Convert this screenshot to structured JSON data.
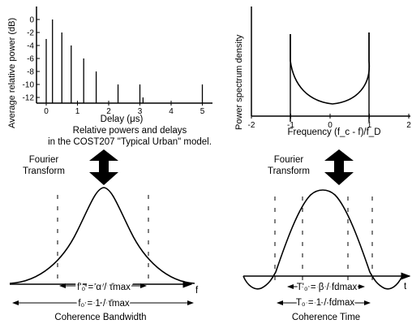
{
  "delay_chart": {
    "ylabel": "Average relative power (dB)",
    "xlabel": "Delay (μs)",
    "yticks": [
      "0",
      "-2",
      "-4",
      "-6",
      "-8",
      "-10",
      "-12"
    ],
    "xticks": [
      "0",
      "1",
      "2",
      "3",
      "4",
      "5"
    ],
    "caption_line1": "Relative powers and delays",
    "caption_line2": "in the COST207 \"Typical Urban\" model.",
    "impulses": [
      {
        "delay": 0.0,
        "power_db": -3
      },
      {
        "delay": 0.2,
        "power_db": 0
      },
      {
        "delay": 0.5,
        "power_db": -2
      },
      {
        "delay": 0.8,
        "power_db": -4
      },
      {
        "delay": 1.2,
        "power_db": -6
      },
      {
        "delay": 1.6,
        "power_db": -8
      },
      {
        "delay": 2.3,
        "power_db": -10
      },
      {
        "delay": 3.0,
        "power_db": -10
      },
      {
        "delay": 3.1,
        "power_db": -12
      },
      {
        "delay": 5.0,
        "power_db": -10
      }
    ]
  },
  "doppler_chart": {
    "ylabel": "Power spectrum density",
    "xlabel": "Frequency (f_c - f)/f_D",
    "xticks": [
      "-2",
      "-1",
      "0",
      "1",
      "2"
    ]
  },
  "left_bottom": {
    "fourier_line1": "Fourier",
    "fourier_line2": "Transform",
    "f_axis": "f",
    "inner_label": "f'₀ = α / τ̄max",
    "outer_label": "f₀ = 1 / τ̄max",
    "caption": "Coherence Bandwidth"
  },
  "right_bottom": {
    "fourier_line1": "Fourier",
    "fourier_line2": "Transform",
    "t_axis": "t",
    "inner_label": "T'₀ = β / fdmax",
    "outer_label": "T₀ = 1 / fdmax",
    "caption": "Coherence Time"
  }
}
